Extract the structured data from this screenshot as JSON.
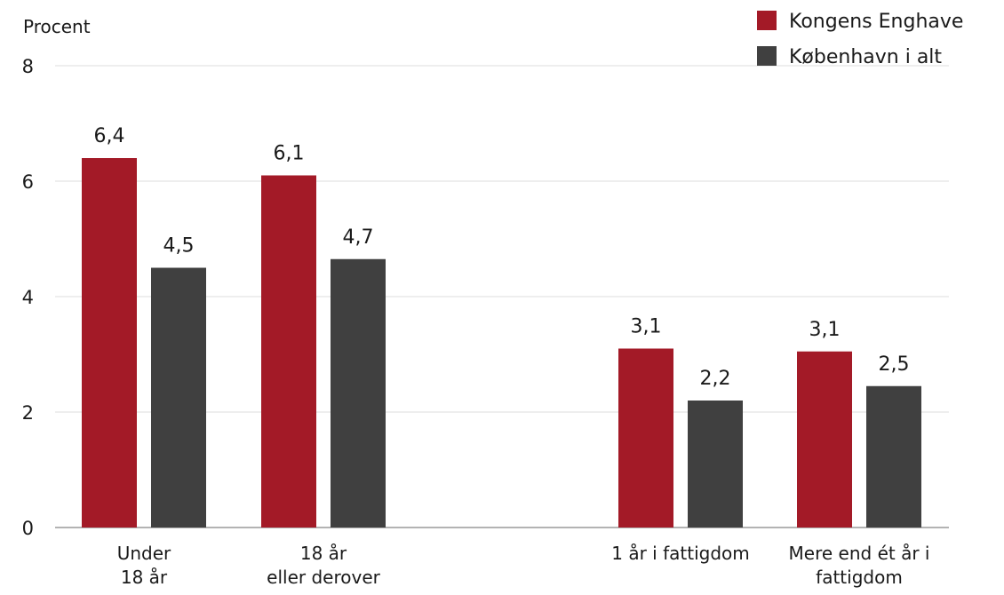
{
  "chart_data": {
    "type": "bar",
    "ylabel": "Procent",
    "ylim": [
      0,
      8
    ],
    "yticks": [
      "0",
      "2",
      "4",
      "6",
      "8"
    ],
    "grid": true,
    "legend_position": "top-right",
    "categories": [
      [
        "Under",
        "18 år"
      ],
      [
        "18 år",
        "eller derover"
      ],
      [
        "1 år i fattigdom"
      ],
      [
        "Mere end ét år i",
        "fattigdom"
      ]
    ],
    "series": [
      {
        "name": "Kongens Enghave",
        "color": "#a31a27",
        "values": [
          6.4,
          6.1,
          3.1,
          3.05
        ],
        "labels": [
          "6,4",
          "6,1",
          "3,1",
          "3,1"
        ]
      },
      {
        "name": "København i alt",
        "color": "#404040",
        "values": [
          4.5,
          4.65,
          2.2,
          2.45
        ],
        "labels": [
          "4,5",
          "4,7",
          "2,2",
          "2,5"
        ]
      }
    ]
  }
}
